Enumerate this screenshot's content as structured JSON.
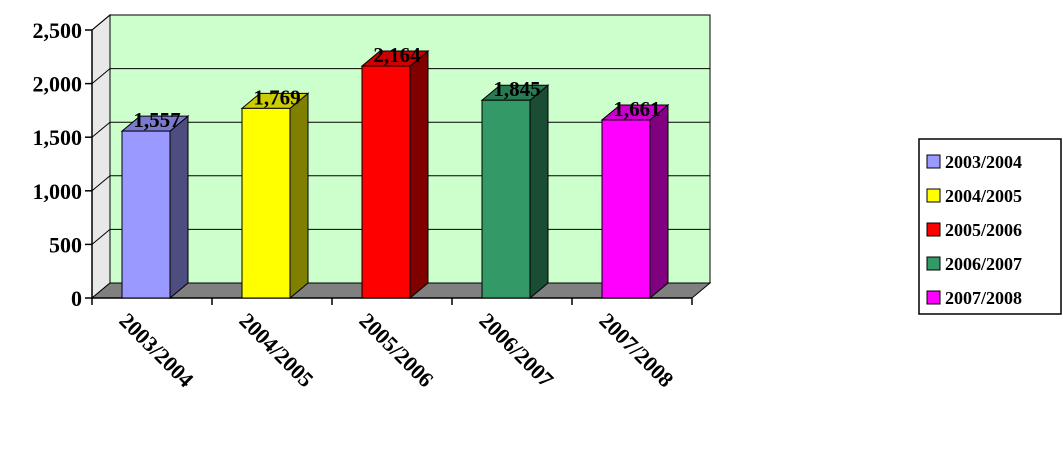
{
  "chart_data": {
    "type": "bar",
    "title": "",
    "xlabel": "",
    "ylabel": "",
    "categories": [
      "2003/2004",
      "2004/2005",
      "2005/2006",
      "2006/2007",
      "2007/2008"
    ],
    "values": [
      1557,
      1769,
      2164,
      1845,
      1661
    ],
    "data_labels": [
      "1,557",
      "1,769",
      "2,164",
      "1,845",
      "1,661"
    ],
    "ylim": [
      0,
      2500
    ],
    "y_ticks": [
      0,
      500,
      1000,
      1500,
      2000,
      2500
    ],
    "y_tick_labels": [
      "0",
      "500",
      "1,000",
      "1,500",
      "2,000",
      "2,500"
    ],
    "grid": true,
    "three_d": true,
    "legend_position": "right",
    "legend_labels": [
      "2003/2004",
      "2004/2005",
      "2005/2006",
      "2006/2007",
      "2007/2008"
    ],
    "bar_colors": [
      "#9999ff",
      "#ffff00",
      "#ff0000",
      "#339966",
      "#ff00ff"
    ],
    "wall_color": "#ccffcc",
    "floor_color": "#808080"
  }
}
